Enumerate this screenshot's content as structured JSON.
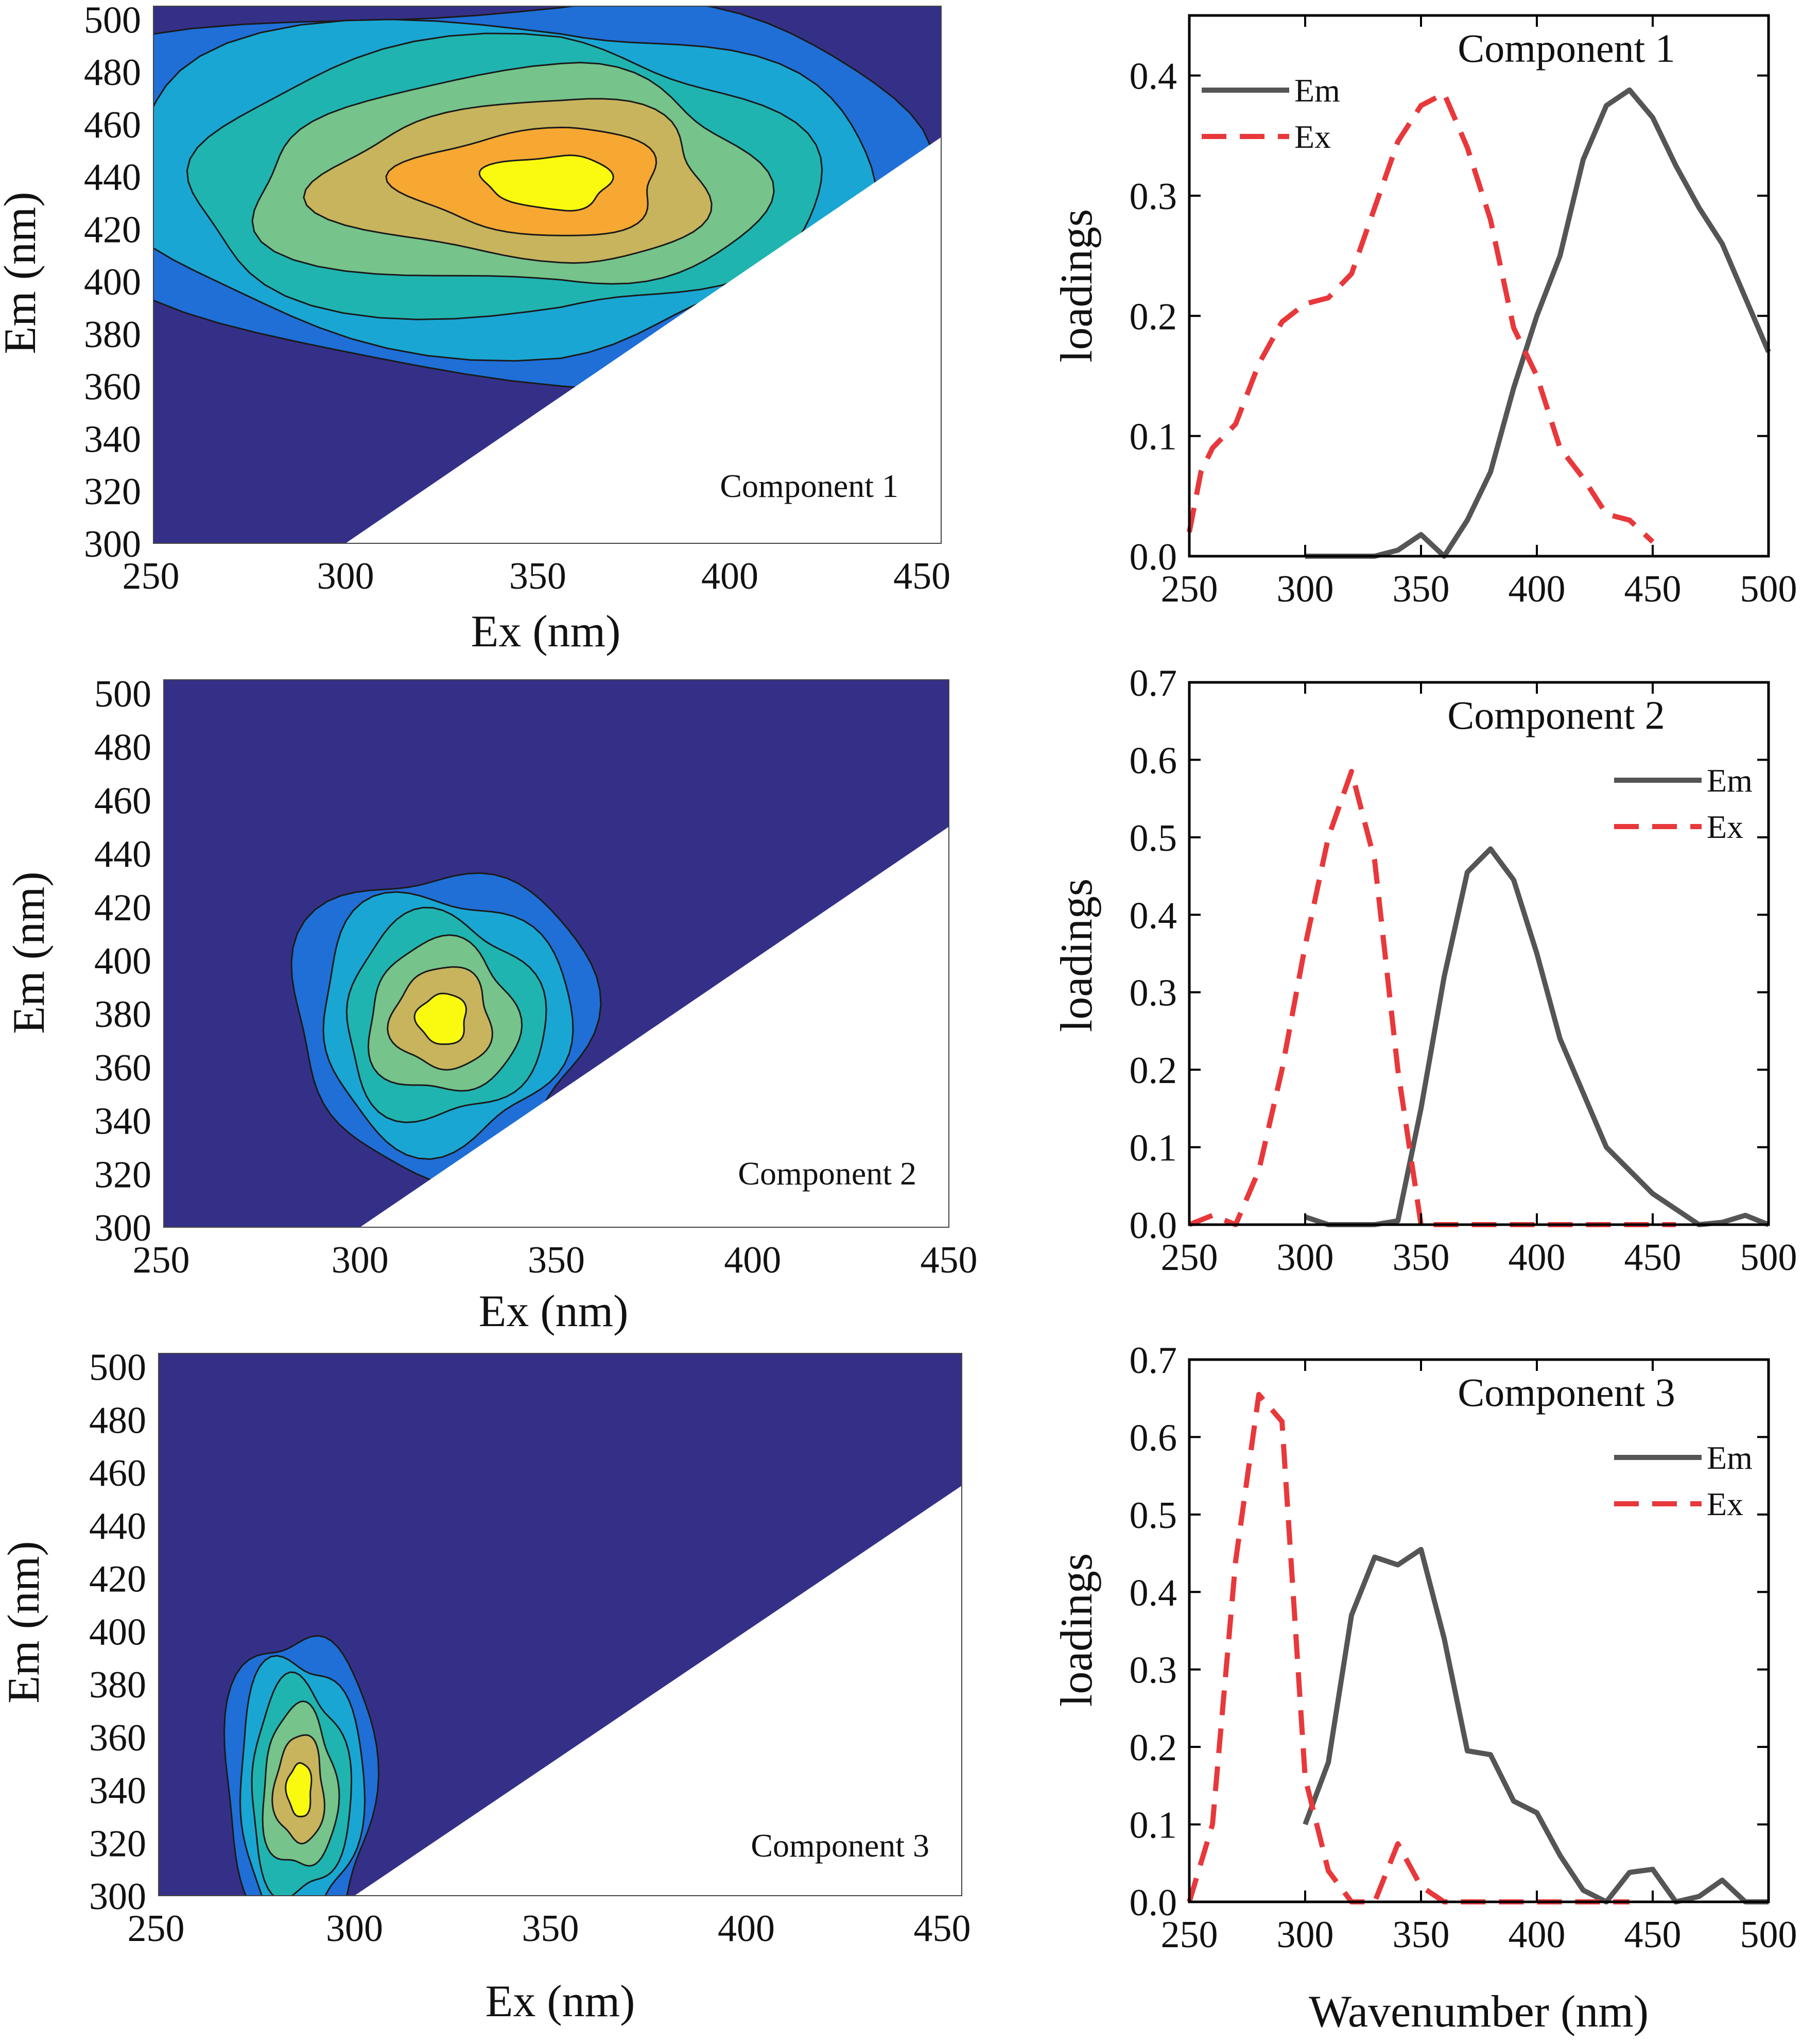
{
  "figure": {
    "colors": {
      "background": "#353087",
      "levels": [
        "#353087",
        "#1f6fd6",
        "#1aa6d2",
        "#20b4b0",
        "#76c38b",
        "#c7b45d",
        "#f6a833",
        "#fafa10"
      ],
      "em_line": "#555555",
      "ex_line": "#e8383b"
    }
  },
  "chart_data": [
    {
      "type": "contour",
      "panel": "contour-1",
      "inset_label": "Component 1",
      "xlabel": "Ex (nm)",
      "ylabel": "Em (nm)",
      "xlim": [
        250,
        455
      ],
      "ylim": [
        300,
        505
      ],
      "xticks": [
        "250",
        "300",
        "350",
        "400",
        "450"
      ],
      "yticks": [
        "300",
        "320",
        "340",
        "360",
        "380",
        "400",
        "420",
        "440",
        "460",
        "480",
        "500"
      ],
      "masked_region": "Em < Ex (no data, white)",
      "peak": {
        "ex": 356,
        "em": 438,
        "spread_ex": 48,
        "spread_em": 38
      },
      "contour_levels": 7
    },
    {
      "type": "contour",
      "panel": "contour-2",
      "inset_label": "Component 2",
      "xlabel": "Ex (nm)",
      "ylabel": "Em (nm)",
      "xlim": [
        250,
        450
      ],
      "ylim": [
        300,
        505
      ],
      "xticks": [
        "250",
        "300",
        "350",
        "400",
        "450"
      ],
      "yticks": [
        "300",
        "320",
        "340",
        "360",
        "380",
        "400",
        "420",
        "440",
        "460",
        "480",
        "500"
      ],
      "masked_region": "Em < Ex (no data, white)",
      "peak": {
        "ex": 321,
        "em": 378,
        "spread_ex": 20,
        "spread_em": 30
      },
      "contour_levels": 6
    },
    {
      "type": "contour",
      "panel": "contour-3",
      "inset_label": "Component 3",
      "xlabel": "Ex (nm)",
      "ylabel": "Em (nm)",
      "xlim": [
        250,
        455
      ],
      "ylim": [
        300,
        505
      ],
      "xticks": [
        "250",
        "300",
        "350",
        "400",
        "450"
      ],
      "yticks": [
        "300",
        "320",
        "340",
        "360",
        "380",
        "400",
        "420",
        "440",
        "460",
        "480",
        "500"
      ],
      "masked_region": "Em < Ex (no data, white)",
      "peak": {
        "ex": 286,
        "em": 340,
        "spread_ex": 10,
        "spread_em": 32
      },
      "contour_levels": 6
    },
    {
      "type": "line",
      "panel": "loadings-1",
      "title": "Component 1",
      "xlabel": "",
      "ylabel": "loadings",
      "xlim": [
        250,
        500
      ],
      "ylim": [
        0,
        0.45
      ],
      "xticks": [
        "250",
        "300",
        "350",
        "400",
        "450",
        "500"
      ],
      "yticks": [
        "0.0",
        "0.1",
        "0.2",
        "0.3",
        "0.4"
      ],
      "legend_position": "top-left",
      "series": [
        {
          "name": "Em",
          "style": "solid",
          "x": [
            300,
            310,
            320,
            330,
            340,
            350,
            360,
            370,
            380,
            390,
            400,
            410,
            420,
            430,
            440,
            450,
            460,
            470,
            480,
            490,
            500
          ],
          "y": [
            0.0,
            0.0,
            0.0,
            0.0,
            0.005,
            0.018,
            0.0,
            0.03,
            0.07,
            0.14,
            0.2,
            0.25,
            0.33,
            0.375,
            0.388,
            0.365,
            0.325,
            0.29,
            0.26,
            0.215,
            0.17
          ]
        },
        {
          "name": "Ex",
          "style": "dashed",
          "x": [
            250,
            255,
            260,
            270,
            280,
            290,
            300,
            310,
            320,
            330,
            340,
            350,
            360,
            370,
            380,
            390,
            400,
            410,
            420,
            430,
            440,
            450
          ],
          "y": [
            0.02,
            0.07,
            0.09,
            0.11,
            0.16,
            0.195,
            0.21,
            0.215,
            0.235,
            0.29,
            0.345,
            0.375,
            0.385,
            0.34,
            0.28,
            0.19,
            0.15,
            0.09,
            0.065,
            0.035,
            0.03,
            0.012
          ]
        }
      ]
    },
    {
      "type": "line",
      "panel": "loadings-2",
      "title": "Component 2",
      "xlabel": "",
      "ylabel": "loadings",
      "xlim": [
        250,
        500
      ],
      "ylim": [
        0,
        0.7
      ],
      "xticks": [
        "250",
        "300",
        "350",
        "400",
        "450",
        "500"
      ],
      "yticks": [
        "0.0",
        "0.1",
        "0.2",
        "0.3",
        "0.4",
        "0.5",
        "0.6",
        "0.7"
      ],
      "legend_position": "top-right",
      "series": [
        {
          "name": "Em",
          "style": "solid",
          "x": [
            300,
            310,
            320,
            330,
            340,
            350,
            360,
            370,
            380,
            390,
            400,
            410,
            420,
            430,
            440,
            450,
            460,
            470,
            480,
            490,
            500
          ],
          "y": [
            0.01,
            0.0,
            0.0,
            0.0,
            0.005,
            0.15,
            0.32,
            0.455,
            0.485,
            0.445,
            0.35,
            0.24,
            0.17,
            0.1,
            0.07,
            0.04,
            0.02,
            0.0,
            0.003,
            0.012,
            0.0
          ]
        },
        {
          "name": "Ex",
          "style": "dashed",
          "x": [
            250,
            260,
            270,
            280,
            290,
            300,
            310,
            320,
            330,
            340,
            350,
            360,
            370,
            380,
            400,
            420,
            440,
            460
          ],
          "y": [
            0.0,
            0.012,
            0.0,
            0.07,
            0.2,
            0.36,
            0.5,
            0.585,
            0.47,
            0.2,
            0.0,
            0.0,
            0.0,
            0.0,
            0.0,
            0.0,
            0.0,
            0.0
          ]
        }
      ]
    },
    {
      "type": "line",
      "panel": "loadings-3",
      "title": "Component 3",
      "xlabel": "Wavenumber (nm)",
      "ylabel": "loadings",
      "xlim": [
        250,
        500
      ],
      "ylim": [
        0,
        0.7
      ],
      "xticks": [
        "250",
        "300",
        "350",
        "400",
        "450",
        "500"
      ],
      "yticks": [
        "0.0",
        "0.1",
        "0.2",
        "0.3",
        "0.4",
        "0.5",
        "0.6",
        "0.7"
      ],
      "legend_position": "top-right",
      "series": [
        {
          "name": "Em",
          "style": "solid",
          "x": [
            300,
            310,
            320,
            330,
            340,
            350,
            360,
            370,
            380,
            390,
            400,
            410,
            420,
            430,
            440,
            450,
            460,
            470,
            480,
            490,
            500
          ],
          "y": [
            0.1,
            0.18,
            0.37,
            0.445,
            0.435,
            0.455,
            0.34,
            0.195,
            0.19,
            0.13,
            0.115,
            0.06,
            0.015,
            0.0,
            0.038,
            0.042,
            0.0,
            0.007,
            0.028,
            0.0,
            0.0
          ]
        },
        {
          "name": "Ex",
          "style": "dashed",
          "x": [
            250,
            260,
            270,
            280,
            290,
            300,
            310,
            320,
            330,
            340,
            350,
            360,
            380,
            400,
            420,
            440
          ],
          "y": [
            0.0,
            0.1,
            0.44,
            0.655,
            0.62,
            0.16,
            0.04,
            0.0,
            0.0,
            0.075,
            0.02,
            0.0,
            0.0,
            0.0,
            0.0,
            0.0
          ]
        }
      ]
    }
  ]
}
